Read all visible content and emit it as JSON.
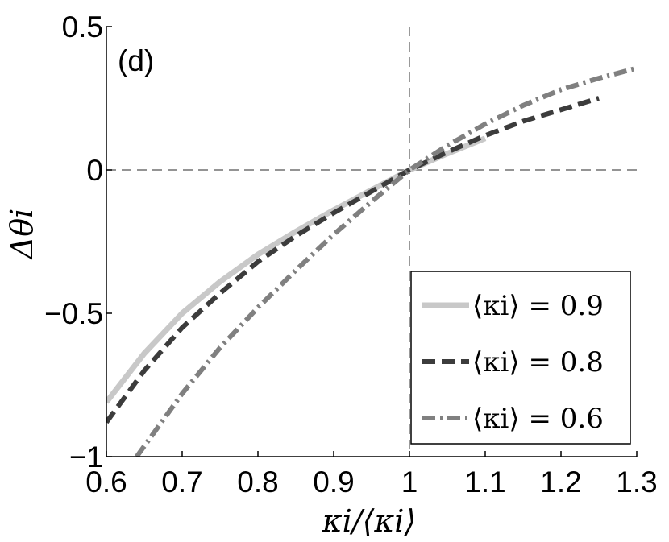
{
  "chart_data": {
    "type": "line",
    "panel_label": "(d)",
    "xlabel": "κi/⟨κi⟩",
    "ylabel": "Δθi",
    "xlim": [
      0.6,
      1.3
    ],
    "ylim": [
      -1,
      0.5
    ],
    "x_ticks": [
      "0.6",
      "0.7",
      "0.8",
      "0.9",
      "1",
      "1.1",
      "1.2",
      "1.3"
    ],
    "y_ticks": [
      "0.5",
      "0",
      "−0.5",
      "−1"
    ],
    "reference_lines": {
      "x": 1,
      "y": 0
    },
    "legend_position": "bottom-right",
    "series": [
      {
        "name": "⟨κi⟩ = 0.9",
        "color": "#c8c8c8",
        "style": "solid",
        "x": [
          0.6,
          0.65,
          0.7,
          0.75,
          0.8,
          0.85,
          0.9,
          0.95,
          1.0,
          1.05,
          1.1
        ],
        "y": [
          -0.81,
          -0.64,
          -0.5,
          -0.39,
          -0.295,
          -0.215,
          -0.14,
          -0.07,
          0.0,
          0.057,
          0.11
        ]
      },
      {
        "name": "⟨κi⟩ = 0.8",
        "color": "#3c3c3c",
        "style": "dashed",
        "x": [
          0.6,
          0.65,
          0.7,
          0.75,
          0.8,
          0.85,
          0.9,
          0.95,
          1.0,
          1.05,
          1.1,
          1.15,
          1.2,
          1.25
        ],
        "y": [
          -0.88,
          -0.7,
          -0.55,
          -0.43,
          -0.32,
          -0.23,
          -0.15,
          -0.075,
          0.0,
          0.062,
          0.12,
          0.17,
          0.21,
          0.25
        ]
      },
      {
        "name": "⟨κi⟩ = 0.6",
        "color": "#808080",
        "style": "dashdot",
        "x": [
          0.64,
          0.7,
          0.75,
          0.8,
          0.85,
          0.9,
          0.95,
          1.0,
          1.05,
          1.1,
          1.15,
          1.2,
          1.25,
          1.3
        ],
        "y": [
          -1.0,
          -0.78,
          -0.62,
          -0.48,
          -0.35,
          -0.225,
          -0.11,
          0.0,
          0.085,
          0.16,
          0.225,
          0.28,
          0.32,
          0.355
        ]
      }
    ]
  }
}
